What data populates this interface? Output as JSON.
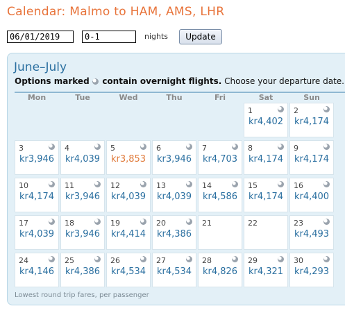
{
  "page": {
    "title": "Calendar: Malmo to HAM, AMS, LHR"
  },
  "controls": {
    "date_value": "06/01/2019",
    "nights_value": "0-1",
    "nights_label": "nights",
    "update_label": "Update"
  },
  "calendar": {
    "heading": "June–July",
    "legend_prefix": "Options marked",
    "legend_middle": "contain overnight flights.",
    "legend_suffix": "Choose your departure date.",
    "days": [
      "Mon",
      "Tue",
      "Wed",
      "Thu",
      "Fri",
      "Sat",
      "Sun"
    ],
    "accent_color": "#2a6fa0",
    "cheapest_color": "#e07a3a",
    "weeks": [
      [
        null,
        null,
        null,
        null,
        null,
        {
          "day": "1",
          "price": "kr4,402",
          "overnight": true
        },
        {
          "day": "2",
          "price": "kr4,174",
          "overnight": true
        }
      ],
      [
        {
          "day": "3",
          "price": "kr3,946",
          "overnight": true
        },
        {
          "day": "4",
          "price": "kr4,039",
          "overnight": true
        },
        {
          "day": "5",
          "price": "kr3,853",
          "overnight": true,
          "cheapest": true
        },
        {
          "day": "6",
          "price": "kr3,946",
          "overnight": true
        },
        {
          "day": "7",
          "price": "kr4,703",
          "overnight": true
        },
        {
          "day": "8",
          "price": "kr4,174",
          "overnight": true
        },
        {
          "day": "9",
          "price": "kr4,174",
          "overnight": true
        }
      ],
      [
        {
          "day": "10",
          "price": "kr4,174",
          "overnight": true
        },
        {
          "day": "11",
          "price": "kr3,946",
          "overnight": true
        },
        {
          "day": "12",
          "price": "kr4,039",
          "overnight": true
        },
        {
          "day": "13",
          "price": "kr4,039",
          "overnight": true
        },
        {
          "day": "14",
          "price": "kr4,586",
          "overnight": true
        },
        {
          "day": "15",
          "price": "kr4,174",
          "overnight": true
        },
        {
          "day": "16",
          "price": "kr4,400",
          "overnight": true
        }
      ],
      [
        {
          "day": "17",
          "price": "kr4,039",
          "overnight": true
        },
        {
          "day": "18",
          "price": "kr3,946",
          "overnight": true
        },
        {
          "day": "19",
          "price": "kr4,414",
          "overnight": true
        },
        {
          "day": "20",
          "price": "kr4,386",
          "overnight": true
        },
        {
          "day": "21",
          "price": "",
          "overnight": false
        },
        {
          "day": "22",
          "price": "",
          "overnight": false
        },
        {
          "day": "23",
          "price": "kr4,493",
          "overnight": true
        }
      ],
      [
        {
          "day": "24",
          "price": "kr4,146",
          "overnight": true
        },
        {
          "day": "25",
          "price": "kr4,386",
          "overnight": true
        },
        {
          "day": "26",
          "price": "kr4,534",
          "overnight": true
        },
        {
          "day": "27",
          "price": "kr4,534",
          "overnight": true
        },
        {
          "day": "28",
          "price": "kr4,826",
          "overnight": true
        },
        {
          "day": "29",
          "price": "kr4,321",
          "overnight": true
        },
        {
          "day": "30",
          "price": "kr4,293",
          "overnight": true
        }
      ]
    ],
    "footer": "Lowest round trip fares, per passenger"
  },
  "icons": {
    "overnight": "moon-icon"
  }
}
